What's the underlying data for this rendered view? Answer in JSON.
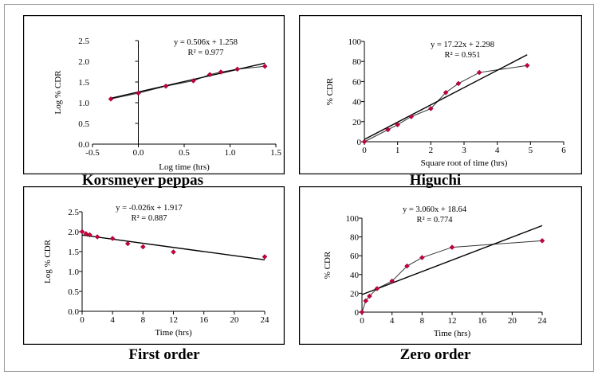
{
  "chart_data": [
    {
      "type": "scatter",
      "caption": "Korsmeyer peppas",
      "xlabel": "Log time (hrs)",
      "ylabel": "Log % CDR",
      "equation": "y = 0.506x + 1.258",
      "r2": "R² = 0.977",
      "xlim": [
        -0.5,
        1.5
      ],
      "ylim": [
        0,
        2.5
      ],
      "xticks": [
        "-0.5",
        "0.0",
        "0.5",
        "1.0",
        "1.5"
      ],
      "yticks": [
        "0.0",
        "0.5",
        "1.0",
        "1.5",
        "2.0",
        "2.5"
      ],
      "grid": false,
      "series": [
        {
          "x": [
            -0.3,
            0.0,
            0.3,
            0.6,
            0.78,
            0.9,
            1.08,
            1.38
          ],
          "y": [
            1.09,
            1.23,
            1.4,
            1.53,
            1.68,
            1.74,
            1.81,
            1.88
          ],
          "connected": true
        }
      ],
      "trendline": {
        "slope": 0.506,
        "intercept": 1.258,
        "x_range": [
          -0.3,
          1.38
        ]
      }
    },
    {
      "type": "scatter",
      "caption": "Higuchi",
      "xlabel": "Square root of time (hrs)",
      "ylabel": "% CDR",
      "equation": "y = 17.22x + 2.298",
      "r2": "R² = 0.951",
      "xlim": [
        0,
        6
      ],
      "ylim": [
        0,
        100
      ],
      "xticks": [
        "0",
        "1",
        "2",
        "3",
        "4",
        "5",
        "6"
      ],
      "yticks": [
        "0",
        "20",
        "40",
        "60",
        "80",
        "100"
      ],
      "grid": false,
      "series": [
        {
          "x": [
            0,
            0.71,
            1.0,
            1.41,
            2.0,
            2.45,
            2.83,
            3.46,
            4.9
          ],
          "y": [
            0,
            12,
            17,
            25,
            33,
            49,
            58,
            69,
            76
          ],
          "connected": true
        }
      ],
      "trendline": {
        "slope": 17.22,
        "intercept": 2.298,
        "x_range": [
          0,
          4.9
        ]
      }
    },
    {
      "type": "scatter",
      "caption": "First order",
      "xlabel": "Time (hrs)",
      "ylabel": "Log % CDR",
      "equation": "y = -0.026x + 1.917",
      "r2": "R² = 0.887",
      "xlim": [
        0,
        24
      ],
      "ylim": [
        0,
        2.5
      ],
      "xticks": [
        "0",
        "4",
        "8",
        "12",
        "16",
        "20",
        "24"
      ],
      "yticks": [
        "0.0",
        "0.5",
        "1.0",
        "1.5",
        "2.0",
        "2.5"
      ],
      "grid": false,
      "series": [
        {
          "x": [
            0,
            0.5,
            1,
            2,
            4,
            6,
            8,
            12,
            24
          ],
          "y": [
            2.0,
            1.95,
            1.92,
            1.87,
            1.83,
            1.7,
            1.62,
            1.49,
            1.37
          ],
          "connected": false
        }
      ],
      "trendline": {
        "slope": -0.026,
        "intercept": 1.917,
        "x_range": [
          0,
          24
        ]
      }
    },
    {
      "type": "scatter",
      "caption": "Zero order",
      "xlabel": "Time (hrs)",
      "ylabel": "% CDR",
      "equation": "y = 3.060x + 18.64",
      "r2": "R² = 0.774",
      "xlim": [
        0,
        24
      ],
      "ylim": [
        0,
        100
      ],
      "xticks": [
        "0",
        "4",
        "8",
        "12",
        "16",
        "20",
        "24"
      ],
      "yticks": [
        "0",
        "20",
        "40",
        "60",
        "80",
        "100"
      ],
      "grid": false,
      "series": [
        {
          "x": [
            0,
            0.5,
            1,
            2,
            4,
            6,
            8,
            12,
            24
          ],
          "y": [
            0,
            12,
            17,
            25,
            33,
            49,
            58,
            69,
            76
          ],
          "connected": true
        }
      ],
      "trendline": {
        "slope": 3.06,
        "intercept": 18.64,
        "x_range": [
          0,
          24
        ]
      }
    }
  ],
  "colors": {
    "marker": "#c8003c",
    "marker_stroke": "#7a0022",
    "trendline": "#000000",
    "connector": "#333333",
    "border": "#000000"
  }
}
